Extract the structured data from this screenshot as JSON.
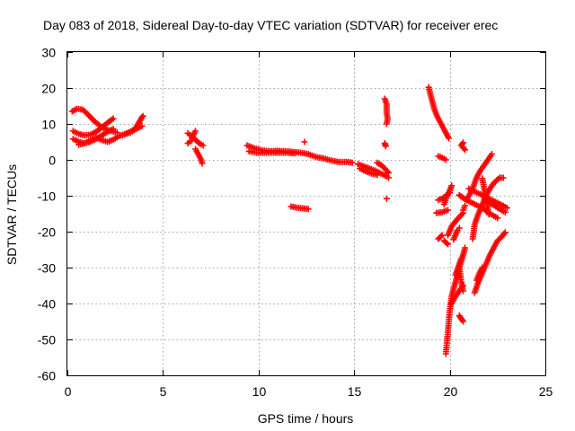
{
  "chart_data": {
    "type": "scatter",
    "title": "Day 083 of 2018, Sidereal Day-to-day VTEC variation (SDTVAR) for receiver erec",
    "xlabel": "GPS time / hours",
    "ylabel": "SDTVAR / TECUs",
    "xlim": [
      0,
      25
    ],
    "ylim": [
      -60,
      30
    ],
    "xticks": [
      "0",
      "5",
      "10",
      "15",
      "20",
      "25"
    ],
    "yticks": [
      "30",
      "20",
      "10",
      "0",
      "-10",
      "-20",
      "-30",
      "-40",
      "-50",
      "-60"
    ],
    "grid": true,
    "marker": "plus",
    "color": "#ff0000",
    "segments": [
      [
        [
          0.25,
          13.5
        ],
        [
          0.5,
          14.2
        ],
        [
          0.8,
          14.0
        ],
        [
          1.1,
          12.5
        ],
        [
          1.4,
          10.8
        ],
        [
          1.7,
          9.5
        ],
        [
          2.0,
          8.5
        ],
        [
          2.3,
          8.0
        ],
        [
          2.6,
          7.6
        ]
      ],
      [
        [
          0.3,
          8.0
        ],
        [
          0.6,
          7.2
        ],
        [
          0.9,
          6.8
        ],
        [
          1.2,
          7.0
        ],
        [
          1.5,
          7.8
        ],
        [
          1.8,
          9.0
        ],
        [
          2.1,
          10.3
        ],
        [
          2.4,
          11.5
        ]
      ],
      [
        [
          0.3,
          5.8
        ],
        [
          0.6,
          5.0
        ],
        [
          0.9,
          4.6
        ],
        [
          1.2,
          5.0
        ],
        [
          1.5,
          5.8
        ],
        [
          1.8,
          6.8
        ],
        [
          2.1,
          7.8
        ],
        [
          2.4,
          8.6
        ]
      ],
      [
        [
          0.6,
          4.2
        ],
        [
          0.9,
          4.6
        ],
        [
          1.2,
          5.4
        ],
        [
          1.5,
          6.2
        ],
        [
          1.8,
          5.5
        ],
        [
          2.1,
          5.0
        ],
        [
          2.4,
          5.6
        ],
        [
          2.7,
          6.6
        ],
        [
          3.0,
          7.2
        ],
        [
          3.3,
          7.6
        ],
        [
          3.6,
          8.6
        ],
        [
          3.9,
          9.4
        ]
      ],
      [
        [
          2.9,
          6.8
        ],
        [
          3.2,
          7.6
        ],
        [
          3.5,
          8.4
        ],
        [
          3.7,
          10.0
        ],
        [
          3.9,
          11.8
        ],
        [
          3.95,
          12.2
        ]
      ],
      [
        [
          6.3,
          7.4
        ],
        [
          6.5,
          6.6
        ],
        [
          6.7,
          5.6
        ],
        [
          6.9,
          4.6
        ],
        [
          7.1,
          4.0
        ]
      ],
      [
        [
          6.3,
          4.6
        ],
        [
          6.5,
          5.4
        ],
        [
          6.6,
          7.0
        ],
        [
          6.7,
          8.0
        ]
      ],
      [
        [
          6.7,
          3.0
        ],
        [
          6.8,
          2.0
        ],
        [
          6.9,
          1.0
        ],
        [
          7.0,
          0.0
        ],
        [
          7.05,
          -1.0
        ]
      ],
      [
        [
          9.4,
          4.0
        ],
        [
          9.8,
          3.2
        ],
        [
          10.2,
          2.6
        ],
        [
          10.6,
          2.4
        ],
        [
          11.0,
          2.5
        ],
        [
          11.4,
          2.4
        ],
        [
          11.8,
          2.2
        ],
        [
          12.2,
          2.0
        ],
        [
          12.6,
          1.6
        ],
        [
          13.0,
          0.8
        ],
        [
          13.4,
          0.4
        ],
        [
          13.8,
          -0.2
        ],
        [
          14.2,
          -0.6
        ],
        [
          14.6,
          -0.6
        ],
        [
          14.9,
          -0.8
        ]
      ],
      [
        [
          9.5,
          2.4
        ],
        [
          9.9,
          2.0
        ],
        [
          10.3,
          2.0
        ],
        [
          10.7,
          2.0
        ],
        [
          11.1,
          2.0
        ],
        [
          11.5,
          2.0
        ],
        [
          11.9,
          1.8
        ]
      ],
      [
        [
          12.4,
          5.0
        ]
      ],
      [
        [
          11.7,
          -13.0
        ],
        [
          12.0,
          -13.3
        ],
        [
          12.3,
          -13.5
        ],
        [
          12.6,
          -13.7
        ]
      ],
      [
        [
          15.2,
          -1.2
        ],
        [
          15.5,
          -1.8
        ],
        [
          15.8,
          -2.4
        ],
        [
          16.1,
          -3.0
        ],
        [
          16.4,
          -3.8
        ],
        [
          16.7,
          -4.6
        ],
        [
          16.8,
          -5.0
        ]
      ],
      [
        [
          15.3,
          -2.4
        ],
        [
          15.6,
          -3.2
        ],
        [
          15.9,
          -3.8
        ],
        [
          16.2,
          -4.2
        ]
      ],
      [
        [
          16.2,
          -0.8
        ],
        [
          16.4,
          -1.4
        ],
        [
          16.6,
          -2.4
        ],
        [
          16.8,
          -3.6
        ]
      ],
      [
        [
          16.6,
          17.0
        ],
        [
          16.7,
          15.5
        ],
        [
          16.7,
          13.0
        ],
        [
          16.75,
          11.5
        ],
        [
          16.7,
          10.0
        ]
      ],
      [
        [
          16.6,
          4.6
        ],
        [
          16.65,
          3.8
        ]
      ],
      [
        [
          16.7,
          -10.8
        ]
      ],
      [
        [
          18.9,
          20.2
        ],
        [
          19.0,
          18.0
        ],
        [
          19.1,
          16.0
        ],
        [
          19.2,
          14.0
        ],
        [
          19.35,
          12.0
        ],
        [
          19.5,
          10.5
        ],
        [
          19.65,
          9.0
        ],
        [
          19.8,
          7.5
        ],
        [
          19.95,
          6.0
        ]
      ],
      [
        [
          19.4,
          1.0
        ],
        [
          19.6,
          0.6
        ],
        [
          19.8,
          0.0
        ]
      ],
      [
        [
          19.4,
          -11.2
        ],
        [
          19.6,
          -10.8
        ],
        [
          19.8,
          -10.0
        ],
        [
          20.0,
          -9.2
        ]
      ],
      [
        [
          19.3,
          -14.8
        ],
        [
          19.6,
          -14.6
        ],
        [
          19.9,
          -14.0
        ]
      ],
      [
        [
          19.7,
          -12.4
        ],
        [
          19.9,
          -9.6
        ],
        [
          20.0,
          -8.6
        ],
        [
          20.1,
          -7.2
        ]
      ],
      [
        [
          19.8,
          -54.0
        ],
        [
          19.85,
          -51.0
        ],
        [
          19.9,
          -48.0
        ],
        [
          19.95,
          -45.0
        ],
        [
          20.0,
          -42.0
        ],
        [
          20.1,
          -38.0
        ],
        [
          20.3,
          -34.0
        ],
        [
          20.5,
          -30.0
        ],
        [
          20.7,
          -26.5
        ],
        [
          20.8,
          -24.5
        ]
      ],
      [
        [
          20.1,
          -40.0
        ],
        [
          20.3,
          -38.0
        ],
        [
          20.5,
          -36.5
        ],
        [
          20.7,
          -35.0
        ]
      ],
      [
        [
          20.3,
          -32.0
        ],
        [
          20.5,
          -29.0
        ],
        [
          20.6,
          -27.5
        ]
      ],
      [
        [
          20.5,
          -30.0
        ],
        [
          20.6,
          -34.0
        ],
        [
          20.7,
          -36.5
        ]
      ],
      [
        [
          20.5,
          -43.4
        ],
        [
          20.6,
          -44.2
        ],
        [
          20.7,
          -45.0
        ]
      ],
      [
        [
          20.7,
          -14.0
        ],
        [
          20.8,
          -12.8
        ]
      ],
      [
        [
          19.9,
          -21.0
        ],
        [
          20.1,
          -18.5
        ],
        [
          20.4,
          -16.5
        ],
        [
          20.7,
          -14.8
        ]
      ],
      [
        [
          19.7,
          -22.5
        ],
        [
          19.9,
          -23.5
        ]
      ],
      [
        [
          20.2,
          -22.2
        ],
        [
          20.4,
          -19.6
        ],
        [
          20.5,
          -19.0
        ]
      ],
      [
        [
          19.4,
          -22.0
        ],
        [
          19.6,
          -21.0
        ]
      ],
      [
        [
          20.7,
          4.8
        ],
        [
          20.6,
          4.0
        ],
        [
          20.8,
          2.8
        ]
      ],
      [
        [
          20.9,
          -11.0
        ],
        [
          21.2,
          -8.0
        ],
        [
          21.4,
          -5.0
        ],
        [
          21.6,
          -3.0
        ],
        [
          21.8,
          -1.5
        ],
        [
          22.0,
          0.0
        ],
        [
          22.2,
          1.6
        ]
      ],
      [
        [
          21.2,
          -22.0
        ],
        [
          21.3,
          -18.0
        ],
        [
          21.5,
          -15.0
        ],
        [
          21.7,
          -12.5
        ],
        [
          21.9,
          -10.0
        ],
        [
          22.1,
          -8.0
        ],
        [
          22.3,
          -6.5
        ],
        [
          22.6,
          -5.0
        ],
        [
          22.8,
          -5.0
        ]
      ],
      [
        [
          21.0,
          -8.0
        ],
        [
          21.3,
          -8.8
        ],
        [
          21.6,
          -9.6
        ],
        [
          21.9,
          -10.4
        ],
        [
          22.2,
          -11.2
        ],
        [
          22.5,
          -12.0
        ],
        [
          22.8,
          -12.8
        ],
        [
          23.0,
          -13.4
        ]
      ],
      [
        [
          20.5,
          -9.8
        ],
        [
          20.8,
          -11.0
        ],
        [
          21.1,
          -11.8
        ],
        [
          21.4,
          -12.6
        ],
        [
          21.7,
          -13.4
        ],
        [
          22.0,
          -14.6
        ],
        [
          22.3,
          -15.6
        ],
        [
          22.5,
          -16.2
        ]
      ],
      [
        [
          21.7,
          -5.2
        ],
        [
          21.8,
          -8.0
        ],
        [
          21.9,
          -11.0
        ],
        [
          22.0,
          -14.0
        ],
        [
          22.05,
          -15.2
        ]
      ],
      [
        [
          21.8,
          -11.0
        ],
        [
          22.1,
          -12.0
        ],
        [
          22.4,
          -13.0
        ],
        [
          22.7,
          -14.0
        ],
        [
          22.9,
          -14.6
        ]
      ],
      [
        [
          21.3,
          -37.0
        ],
        [
          21.5,
          -34.0
        ],
        [
          21.7,
          -31.5
        ],
        [
          21.9,
          -29.0
        ],
        [
          22.1,
          -26.5
        ],
        [
          22.3,
          -24.5
        ],
        [
          22.5,
          -22.5
        ],
        [
          22.7,
          -21.5
        ],
        [
          22.9,
          -20.2
        ]
      ],
      [
        [
          21.4,
          -33.5
        ],
        [
          21.6,
          -31.0
        ],
        [
          21.7,
          -30.0
        ]
      ]
    ]
  }
}
